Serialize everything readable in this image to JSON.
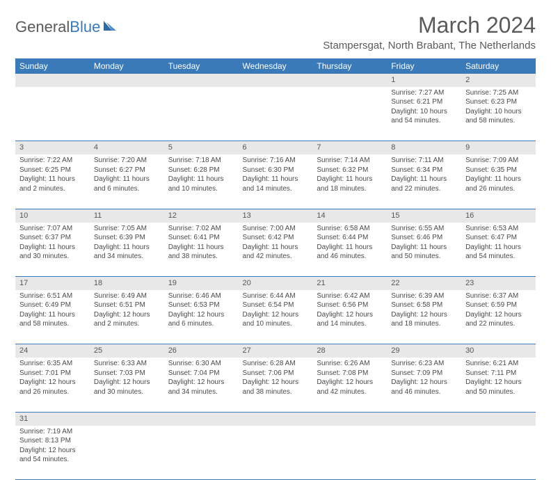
{
  "header": {
    "logo_text_1": "General",
    "logo_text_2": "Blue",
    "title": "March 2024",
    "subtitle": "Stampersgat, North Brabant, The Netherlands"
  },
  "style": {
    "header_bg": "#3a7ab8",
    "header_fg": "#ffffff",
    "daynum_bg": "#e8e8e8",
    "border_color": "#3a7ab8",
    "text_color": "#4a4a4a",
    "title_color": "#5a5a5a",
    "body_font_size": 10,
    "title_font_size": 32,
    "subtitle_font_size": 15
  },
  "days_of_week": [
    "Sunday",
    "Monday",
    "Tuesday",
    "Wednesday",
    "Thursday",
    "Friday",
    "Saturday"
  ],
  "weeks": [
    [
      null,
      null,
      null,
      null,
      null,
      {
        "n": "1",
        "sr": "Sunrise: 7:27 AM",
        "ss": "Sunset: 6:21 PM",
        "d1": "Daylight: 10 hours",
        "d2": "and 54 minutes."
      },
      {
        "n": "2",
        "sr": "Sunrise: 7:25 AM",
        "ss": "Sunset: 6:23 PM",
        "d1": "Daylight: 10 hours",
        "d2": "and 58 minutes."
      }
    ],
    [
      {
        "n": "3",
        "sr": "Sunrise: 7:22 AM",
        "ss": "Sunset: 6:25 PM",
        "d1": "Daylight: 11 hours",
        "d2": "and 2 minutes."
      },
      {
        "n": "4",
        "sr": "Sunrise: 7:20 AM",
        "ss": "Sunset: 6:27 PM",
        "d1": "Daylight: 11 hours",
        "d2": "and 6 minutes."
      },
      {
        "n": "5",
        "sr": "Sunrise: 7:18 AM",
        "ss": "Sunset: 6:28 PM",
        "d1": "Daylight: 11 hours",
        "d2": "and 10 minutes."
      },
      {
        "n": "6",
        "sr": "Sunrise: 7:16 AM",
        "ss": "Sunset: 6:30 PM",
        "d1": "Daylight: 11 hours",
        "d2": "and 14 minutes."
      },
      {
        "n": "7",
        "sr": "Sunrise: 7:14 AM",
        "ss": "Sunset: 6:32 PM",
        "d1": "Daylight: 11 hours",
        "d2": "and 18 minutes."
      },
      {
        "n": "8",
        "sr": "Sunrise: 7:11 AM",
        "ss": "Sunset: 6:34 PM",
        "d1": "Daylight: 11 hours",
        "d2": "and 22 minutes."
      },
      {
        "n": "9",
        "sr": "Sunrise: 7:09 AM",
        "ss": "Sunset: 6:35 PM",
        "d1": "Daylight: 11 hours",
        "d2": "and 26 minutes."
      }
    ],
    [
      {
        "n": "10",
        "sr": "Sunrise: 7:07 AM",
        "ss": "Sunset: 6:37 PM",
        "d1": "Daylight: 11 hours",
        "d2": "and 30 minutes."
      },
      {
        "n": "11",
        "sr": "Sunrise: 7:05 AM",
        "ss": "Sunset: 6:39 PM",
        "d1": "Daylight: 11 hours",
        "d2": "and 34 minutes."
      },
      {
        "n": "12",
        "sr": "Sunrise: 7:02 AM",
        "ss": "Sunset: 6:41 PM",
        "d1": "Daylight: 11 hours",
        "d2": "and 38 minutes."
      },
      {
        "n": "13",
        "sr": "Sunrise: 7:00 AM",
        "ss": "Sunset: 6:42 PM",
        "d1": "Daylight: 11 hours",
        "d2": "and 42 minutes."
      },
      {
        "n": "14",
        "sr": "Sunrise: 6:58 AM",
        "ss": "Sunset: 6:44 PM",
        "d1": "Daylight: 11 hours",
        "d2": "and 46 minutes."
      },
      {
        "n": "15",
        "sr": "Sunrise: 6:55 AM",
        "ss": "Sunset: 6:46 PM",
        "d1": "Daylight: 11 hours",
        "d2": "and 50 minutes."
      },
      {
        "n": "16",
        "sr": "Sunrise: 6:53 AM",
        "ss": "Sunset: 6:47 PM",
        "d1": "Daylight: 11 hours",
        "d2": "and 54 minutes."
      }
    ],
    [
      {
        "n": "17",
        "sr": "Sunrise: 6:51 AM",
        "ss": "Sunset: 6:49 PM",
        "d1": "Daylight: 11 hours",
        "d2": "and 58 minutes."
      },
      {
        "n": "18",
        "sr": "Sunrise: 6:49 AM",
        "ss": "Sunset: 6:51 PM",
        "d1": "Daylight: 12 hours",
        "d2": "and 2 minutes."
      },
      {
        "n": "19",
        "sr": "Sunrise: 6:46 AM",
        "ss": "Sunset: 6:53 PM",
        "d1": "Daylight: 12 hours",
        "d2": "and 6 minutes."
      },
      {
        "n": "20",
        "sr": "Sunrise: 6:44 AM",
        "ss": "Sunset: 6:54 PM",
        "d1": "Daylight: 12 hours",
        "d2": "and 10 minutes."
      },
      {
        "n": "21",
        "sr": "Sunrise: 6:42 AM",
        "ss": "Sunset: 6:56 PM",
        "d1": "Daylight: 12 hours",
        "d2": "and 14 minutes."
      },
      {
        "n": "22",
        "sr": "Sunrise: 6:39 AM",
        "ss": "Sunset: 6:58 PM",
        "d1": "Daylight: 12 hours",
        "d2": "and 18 minutes."
      },
      {
        "n": "23",
        "sr": "Sunrise: 6:37 AM",
        "ss": "Sunset: 6:59 PM",
        "d1": "Daylight: 12 hours",
        "d2": "and 22 minutes."
      }
    ],
    [
      {
        "n": "24",
        "sr": "Sunrise: 6:35 AM",
        "ss": "Sunset: 7:01 PM",
        "d1": "Daylight: 12 hours",
        "d2": "and 26 minutes."
      },
      {
        "n": "25",
        "sr": "Sunrise: 6:33 AM",
        "ss": "Sunset: 7:03 PM",
        "d1": "Daylight: 12 hours",
        "d2": "and 30 minutes."
      },
      {
        "n": "26",
        "sr": "Sunrise: 6:30 AM",
        "ss": "Sunset: 7:04 PM",
        "d1": "Daylight: 12 hours",
        "d2": "and 34 minutes."
      },
      {
        "n": "27",
        "sr": "Sunrise: 6:28 AM",
        "ss": "Sunset: 7:06 PM",
        "d1": "Daylight: 12 hours",
        "d2": "and 38 minutes."
      },
      {
        "n": "28",
        "sr": "Sunrise: 6:26 AM",
        "ss": "Sunset: 7:08 PM",
        "d1": "Daylight: 12 hours",
        "d2": "and 42 minutes."
      },
      {
        "n": "29",
        "sr": "Sunrise: 6:23 AM",
        "ss": "Sunset: 7:09 PM",
        "d1": "Daylight: 12 hours",
        "d2": "and 46 minutes."
      },
      {
        "n": "30",
        "sr": "Sunrise: 6:21 AM",
        "ss": "Sunset: 7:11 PM",
        "d1": "Daylight: 12 hours",
        "d2": "and 50 minutes."
      }
    ],
    [
      {
        "n": "31",
        "sr": "Sunrise: 7:19 AM",
        "ss": "Sunset: 8:13 PM",
        "d1": "Daylight: 12 hours",
        "d2": "and 54 minutes."
      },
      null,
      null,
      null,
      null,
      null,
      null
    ]
  ]
}
